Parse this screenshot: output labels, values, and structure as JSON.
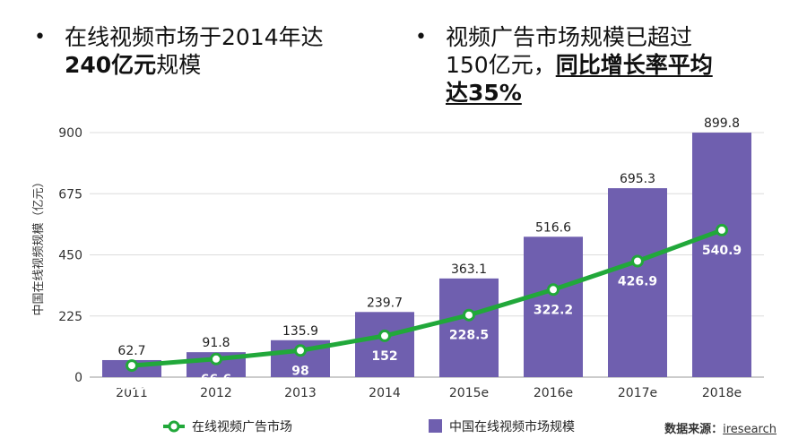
{
  "headline": {
    "left": {
      "line1": "在线视频市场于2014年达",
      "line2_bold": "240亿元",
      "line2_rest": "规模"
    },
    "right": {
      "line1": "视频广告市场规模已超过",
      "line2_plain": "150亿元，",
      "line2_under": "同比增长率平均",
      "line3": "达35%"
    },
    "bullet": "•"
  },
  "source": {
    "label": "数据来源：",
    "link": "iresearch"
  },
  "chart_data": {
    "type": "bar",
    "categories": [
      "2011",
      "2012",
      "2013",
      "2014",
      "2015e",
      "2016e",
      "2017e",
      "2018e"
    ],
    "ylabel": "中国在线视频规模（亿元）",
    "ylim": [
      0,
      900
    ],
    "yticks": [
      0,
      225,
      450,
      675,
      900
    ],
    "grid": true,
    "legend_position": "bottom",
    "series": [
      {
        "name": "中国在线视频市场规模",
        "kind": "bar",
        "color": "#6f5faf",
        "values": [
          62.7,
          91.8,
          135.9,
          239.7,
          363.1,
          516.6,
          695.3,
          899.8
        ]
      },
      {
        "name": "在线视频广告市场",
        "kind": "line",
        "color": "#21a83a",
        "values": [
          42.5,
          66.6,
          98,
          152,
          228.5,
          322.2,
          426.9,
          540.9
        ]
      }
    ]
  }
}
